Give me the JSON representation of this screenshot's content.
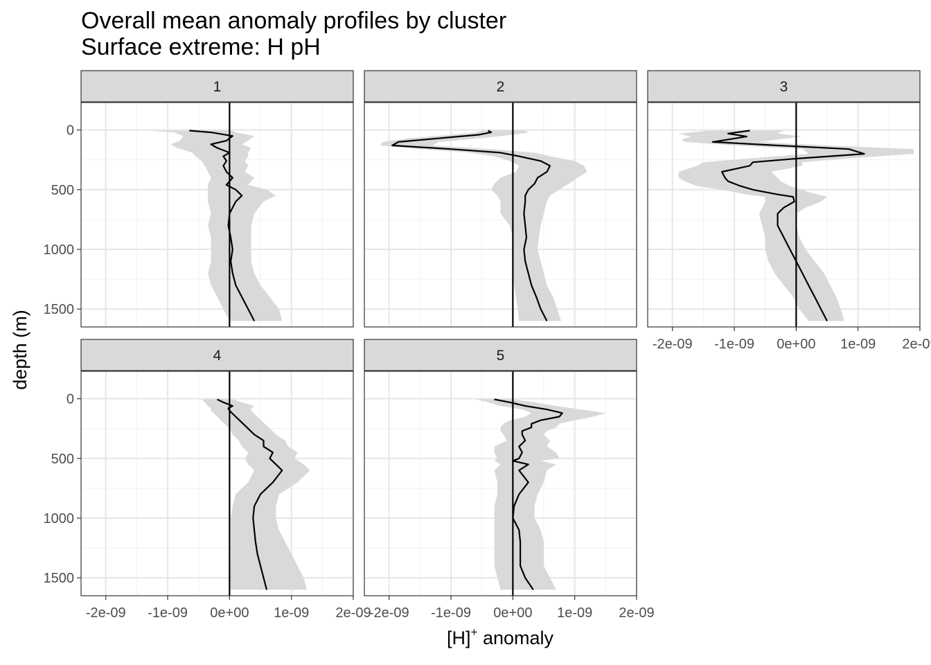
{
  "chart_data": {
    "type": "line",
    "title": "Overall mean anomaly profiles by cluster",
    "subtitle": "Surface extreme: H pH",
    "xlabel": "[H]",
    "xlabel_superscript": "+",
    "xlabel_suffix": " anomaly",
    "ylabel": "depth (m)",
    "xlim": [
      -2.4e-09,
      2e-09
    ],
    "ylim": [
      1650,
      -230
    ],
    "x_ticks": [
      -2e-09,
      -1e-09,
      0,
      1e-09,
      2e-09
    ],
    "x_tick_labels": [
      "-2e-09",
      "-1e-09",
      "0e+00",
      "1e-09",
      "2e-09"
    ],
    "y_ticks": [
      0,
      500,
      1000,
      1500
    ],
    "y_tick_labels": [
      "0",
      "500",
      "1000",
      "1500"
    ],
    "reference_line_x": 0,
    "grid": true,
    "ribbon_color": "#d9d9d9",
    "line_color": "#000000",
    "series": [
      {
        "name": "1",
        "depth": [
          5,
          20,
          50,
          90,
          120,
          150,
          190,
          220,
          260,
          300,
          350,
          400,
          460,
          500,
          550,
          600,
          700,
          800,
          900,
          1000,
          1100,
          1200,
          1300,
          1400,
          1500,
          1600
        ],
        "mean": [
          -6.5e-10,
          -3e-10,
          5e-11,
          -5e-11,
          -3e-10,
          -2e-10,
          0.0,
          -1e-10,
          -5e-11,
          -1e-10,
          -5e-11,
          5e-11,
          -5e-11,
          1e-10,
          2e-10,
          1e-10,
          0.0,
          -2e-11,
          2e-11,
          5e-11,
          2e-11,
          5e-11,
          1e-10,
          2e-10,
          3e-10,
          4e-10
        ],
        "lower": [
          -1.3e-09,
          -9e-10,
          -7.5e-10,
          -8e-10,
          -9.5e-10,
          -8.5e-10,
          -6e-10,
          -5.5e-10,
          -4.5e-10,
          -4e-10,
          -3.5e-10,
          -3e-10,
          -3.5e-10,
          -3.5e-10,
          -3.5e-10,
          -3.5e-10,
          -3e-10,
          -3.5e-10,
          -3e-10,
          -3e-10,
          -3e-10,
          -3.5e-10,
          -3e-10,
          -2e-10,
          -1e-10,
          0.0
        ],
        "upper": [
          5e-11,
          1e-10,
          4e-10,
          3e-10,
          2e-10,
          3.5e-10,
          3e-10,
          3e-10,
          2.5e-10,
          3e-10,
          2.5e-10,
          4e-10,
          3e-10,
          6e-10,
          7.5e-10,
          5.5e-10,
          4e-10,
          3.5e-10,
          3.5e-10,
          3.5e-10,
          3.5e-10,
          4e-10,
          5e-10,
          6.5e-10,
          8e-10,
          8.5e-10
        ]
      },
      {
        "name": "2",
        "depth": [
          5,
          20,
          40,
          70,
          100,
          130,
          160,
          190,
          220,
          260,
          300,
          350,
          400,
          450,
          500,
          550,
          600,
          700,
          800,
          900,
          1000,
          1100,
          1200,
          1300,
          1400,
          1500,
          1600
        ],
        "mean": [
          -4e-10,
          -3.5e-10,
          -5.5e-10,
          -1.2e-09,
          -1.85e-09,
          -1.95e-09,
          -1e-09,
          -2e-10,
          1e-10,
          4.5e-10,
          6e-10,
          5.5e-10,
          4e-10,
          3.5e-10,
          2.5e-10,
          2e-10,
          2e-10,
          1.8e-10,
          2e-10,
          2.2e-10,
          1.8e-10,
          2e-10,
          2.5e-10,
          3e-10,
          3.8e-10,
          4.5e-10,
          5.5e-10
        ],
        "lower": [
          -5e-10,
          -6e-10,
          -1e-09,
          -1.7e-09,
          -2.1e-09,
          -2.15e-09,
          -1.5e-09,
          -7e-10,
          -3e-10,
          -5e-11,
          1e-10,
          5e-11,
          -2e-10,
          -3e-10,
          -3.5e-10,
          -2.5e-10,
          -2e-10,
          -2e-10,
          -5e-11,
          0.0,
          0.0,
          0.0,
          0.0,
          2e-11,
          5e-11,
          8e-11,
          1e-10
        ],
        "upper": [
          2e-10,
          2.5e-10,
          0.0,
          -5.5e-10,
          -1.2e-09,
          -1.3e-09,
          -3.5e-10,
          3.5e-10,
          6e-10,
          1e-09,
          1.15e-09,
          1.2e-09,
          1.05e-09,
          9e-10,
          7.5e-10,
          6e-10,
          5.5e-10,
          5e-10,
          4.5e-10,
          4.2e-10,
          4e-10,
          4.5e-10,
          5e-10,
          5.5e-10,
          6.5e-10,
          7.2e-10,
          7.8e-10
        ]
      },
      {
        "name": "3",
        "depth": [
          5,
          30,
          55,
          80,
          100,
          130,
          160,
          200,
          240,
          270,
          300,
          350,
          400,
          430,
          470,
          500,
          520,
          540,
          560,
          600,
          650,
          700,
          800,
          900,
          1000,
          1100,
          1200,
          1300,
          1400,
          1500,
          1600
        ],
        "mean": [
          -7.5e-10,
          -1.1e-09,
          -8e-10,
          -1.1e-09,
          -1.35e-09,
          -3e-10,
          8.5e-10,
          1.1e-09,
          0.0,
          -7e-10,
          -7.5e-10,
          -1.2e-09,
          -1.15e-09,
          -1.1e-09,
          -9e-10,
          -7e-10,
          -5e-10,
          -3e-10,
          -5e-11,
          -3e-11,
          -2e-10,
          -3e-10,
          -3e-10,
          -2e-10,
          -1e-10,
          0.0,
          1e-10,
          2e-10,
          3e-10,
          4e-10,
          5e-10
        ],
        "lower": [
          -1.4e-09,
          -1.9e-09,
          -1.7e-09,
          -1.85e-09,
          -1.8e-09,
          -1e-09,
          1e-10,
          2e-10,
          -8e-10,
          -1.5e-09,
          -1.6e-09,
          -1.9e-09,
          -1.9e-09,
          -1.8e-09,
          -1.6e-09,
          -1.2e-09,
          -1e-09,
          -8e-10,
          -5e-10,
          -5e-10,
          -5.5e-10,
          -6e-10,
          -5.5e-10,
          -5e-10,
          -5e-10,
          -4.5e-10,
          -3.5e-10,
          -2e-10,
          -5e-11,
          5e-11,
          2e-10
        ],
        "upper": [
          -2e-10,
          -3e-10,
          1e-10,
          -3e-10,
          -6e-10,
          5e-10,
          1.9e-09,
          1.9e-09,
          8e-10,
          1e-10,
          1e-10,
          -4e-10,
          -3e-10,
          -2.5e-10,
          -1e-10,
          1e-10,
          2e-10,
          3.5e-10,
          5e-10,
          4e-10,
          1.5e-10,
          0.0,
          0.0,
          5e-11,
          1.5e-10,
          3e-10,
          4.5e-10,
          5.5e-10,
          6.5e-10,
          7.2e-10,
          7.8e-10
        ]
      },
      {
        "name": "4",
        "depth": [
          5,
          30,
          60,
          80,
          100,
          150,
          200,
          250,
          300,
          350,
          400,
          450,
          500,
          550,
          600,
          700,
          800,
          900,
          1000,
          1100,
          1200,
          1300,
          1400,
          1500,
          1600
        ],
        "mean": [
          -2e-10,
          -1e-10,
          5e-11,
          -2e-11,
          0.0,
          1e-10,
          2e-10,
          3e-10,
          4e-10,
          5.5e-10,
          5.5e-10,
          7e-10,
          6.5e-10,
          7.5e-10,
          8.5e-10,
          7e-10,
          5e-10,
          4e-10,
          3.8e-10,
          4e-10,
          4.2e-10,
          4.5e-10,
          5e-10,
          5.5e-10,
          6e-10
        ],
        "lower": [
          -4.5e-10,
          -4e-10,
          -3.5e-10,
          -3e-10,
          -3e-10,
          -2e-10,
          -1e-10,
          0.0,
          5e-11,
          1.5e-10,
          2e-10,
          3e-10,
          2.5e-10,
          3e-10,
          4e-10,
          3e-10,
          1e-10,
          5e-11,
          2e-11,
          2e-11,
          2e-11,
          2e-11,
          2e-11,
          0.0,
          0.0
        ],
        "upper": [
          5e-11,
          2e-10,
          4e-10,
          3.5e-10,
          3.5e-10,
          4.5e-10,
          5.5e-10,
          6.5e-10,
          7.5e-10,
          9e-10,
          9.5e-10,
          1.1e-09,
          1.05e-09,
          1.2e-09,
          1.3e-09,
          1.1e-09,
          8e-10,
          7.5e-10,
          7.5e-10,
          8e-10,
          9e-10,
          1e-09,
          1.1e-09,
          1.2e-09,
          1.25e-09
        ]
      },
      {
        "name": "5",
        "depth": [
          5,
          30,
          60,
          90,
          120,
          150,
          180,
          210,
          240,
          270,
          300,
          350,
          400,
          450,
          500,
          520,
          550,
          600,
          700,
          800,
          900,
          1000,
          1100,
          1200,
          1300,
          1400,
          1500,
          1600
        ],
        "mean": [
          -3e-10,
          -5e-11,
          2e-10,
          5.5e-10,
          8e-10,
          7.5e-10,
          4.5e-10,
          3e-10,
          3e-10,
          1.5e-10,
          1.5e-10,
          2e-10,
          1e-10,
          1.5e-10,
          1e-10,
          0.0,
          2.5e-10,
          1e-10,
          2.5e-10,
          1e-10,
          2e-11,
          0.0,
          1e-10,
          1.2e-10,
          1.2e-10,
          1.2e-10,
          2e-10,
          3.3e-10
        ],
        "lower": [
          -6e-10,
          -4e-10,
          -2e-10,
          1.5e-10,
          3e-10,
          2e-10,
          -5e-11,
          -1.5e-10,
          -2e-10,
          -2e-10,
          -1.5e-10,
          -1e-10,
          -3e-10,
          -3e-10,
          -2.5e-10,
          -3e-10,
          -2e-10,
          -3e-10,
          -2.5e-10,
          -2.5e-10,
          -3e-10,
          -3e-10,
          -3e-10,
          -3e-10,
          -3e-10,
          -3e-10,
          -2.5e-10,
          -2e-10
        ],
        "upper": [
          0.0,
          3.5e-10,
          7e-10,
          1.1e-09,
          1.5e-09,
          1.3e-09,
          1e-09,
          7.5e-10,
          7e-10,
          5.5e-10,
          5e-10,
          6e-10,
          5.5e-10,
          7e-10,
          7.5e-10,
          4.5e-10,
          7e-10,
          5.5e-10,
          5e-10,
          4e-10,
          3.5e-10,
          3.5e-10,
          4.5e-10,
          5e-10,
          5e-10,
          5e-10,
          6e-10,
          7e-10
        ]
      }
    ]
  }
}
